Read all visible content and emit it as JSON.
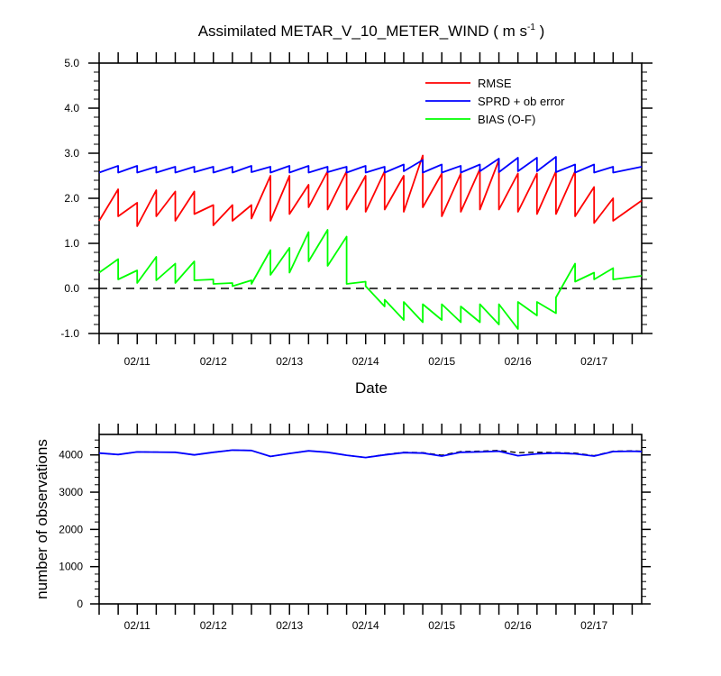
{
  "chart_data": [
    {
      "type": "line",
      "title": "Assimilated METAR_V_10_METER_WIND ( m s",
      "title_sup": "-1",
      "title_end": " )",
      "xlabel": "Date",
      "ylabel": "",
      "x_ticks": [
        "02/11",
        "02/12",
        "02/13",
        "02/14",
        "02/15",
        "02/16",
        "02/17"
      ],
      "y_ticks": [
        "5.0",
        "4.0",
        "3.0",
        "2.0",
        "1.0",
        "0.0",
        "-1.0"
      ],
      "ylim": [
        -1.0,
        5.0
      ],
      "xlim": [
        0,
        28.5
      ],
      "reference_line": {
        "y": 0.0,
        "style": "dashed",
        "color": "#000000"
      },
      "legend_position": "top-right",
      "series": [
        {
          "name": "RMSE",
          "color": "#ff0000",
          "points": [
            [
              0,
              1.5
            ],
            [
              1,
              2.2
            ],
            [
              1,
              1.6
            ],
            [
              2,
              1.9
            ],
            [
              2,
              1.38
            ],
            [
              3,
              2.18
            ],
            [
              3,
              1.6
            ],
            [
              4,
              2.15
            ],
            [
              4,
              1.5
            ],
            [
              5,
              2.15
            ],
            [
              5,
              1.65
            ],
            [
              6,
              1.85
            ],
            [
              6,
              1.4
            ],
            [
              7,
              1.85
            ],
            [
              7,
              1.5
            ],
            [
              8,
              1.85
            ],
            [
              8,
              1.55
            ],
            [
              9,
              2.5
            ],
            [
              9,
              1.5
            ],
            [
              10,
              2.5
            ],
            [
              10,
              1.65
            ],
            [
              11,
              2.3
            ],
            [
              11,
              1.8
            ],
            [
              12,
              2.6
            ],
            [
              12,
              1.75
            ],
            [
              13,
              2.6
            ],
            [
              13,
              1.75
            ],
            [
              14,
              2.5
            ],
            [
              14,
              1.7
            ],
            [
              15,
              2.6
            ],
            [
              15,
              1.75
            ],
            [
              16,
              2.5
            ],
            [
              16,
              1.7
            ],
            [
              17,
              2.95
            ],
            [
              17,
              1.8
            ],
            [
              18,
              2.55
            ],
            [
              18,
              1.6
            ],
            [
              19,
              2.55
            ],
            [
              19,
              1.7
            ],
            [
              20,
              2.65
            ],
            [
              20,
              1.75
            ],
            [
              21,
              2.85
            ],
            [
              21,
              1.75
            ],
            [
              22,
              2.55
            ],
            [
              22,
              1.7
            ],
            [
              23,
              2.55
            ],
            [
              23,
              1.65
            ],
            [
              24,
              2.6
            ],
            [
              24,
              1.65
            ],
            [
              25,
              2.6
            ],
            [
              25,
              1.6
            ],
            [
              26,
              2.25
            ],
            [
              26,
              1.45
            ],
            [
              27,
              2.0
            ],
            [
              27,
              1.5
            ],
            [
              28.5,
              1.95
            ]
          ]
        },
        {
          "name": "SPRD + ob error",
          "color": "#0000ff",
          "points": [
            [
              0,
              2.57
            ],
            [
              1,
              2.72
            ],
            [
              1,
              2.57
            ],
            [
              2,
              2.72
            ],
            [
              2,
              2.57
            ],
            [
              3,
              2.7
            ],
            [
              3,
              2.57
            ],
            [
              4,
              2.7
            ],
            [
              4,
              2.57
            ],
            [
              5,
              2.7
            ],
            [
              5,
              2.58
            ],
            [
              6,
              2.7
            ],
            [
              6,
              2.57
            ],
            [
              7,
              2.7
            ],
            [
              7,
              2.57
            ],
            [
              8,
              2.72
            ],
            [
              8,
              2.58
            ],
            [
              9,
              2.7
            ],
            [
              9,
              2.57
            ],
            [
              10,
              2.72
            ],
            [
              10,
              2.57
            ],
            [
              11,
              2.72
            ],
            [
              11,
              2.57
            ],
            [
              12,
              2.7
            ],
            [
              12,
              2.58
            ],
            [
              13,
              2.7
            ],
            [
              13,
              2.57
            ],
            [
              14,
              2.72
            ],
            [
              14,
              2.57
            ],
            [
              15,
              2.7
            ],
            [
              15,
              2.57
            ],
            [
              16,
              2.75
            ],
            [
              16,
              2.6
            ],
            [
              17,
              2.85
            ],
            [
              17,
              2.57
            ],
            [
              18,
              2.75
            ],
            [
              18,
              2.57
            ],
            [
              19,
              2.72
            ],
            [
              19,
              2.57
            ],
            [
              20,
              2.75
            ],
            [
              20,
              2.6
            ],
            [
              21,
              2.88
            ],
            [
              21,
              2.58
            ],
            [
              22,
              2.9
            ],
            [
              22,
              2.6
            ],
            [
              23,
              2.9
            ],
            [
              23,
              2.6
            ],
            [
              24,
              2.92
            ],
            [
              24,
              2.58
            ],
            [
              25,
              2.75
            ],
            [
              25,
              2.57
            ],
            [
              26,
              2.75
            ],
            [
              26,
              2.57
            ],
            [
              27,
              2.7
            ],
            [
              27,
              2.57
            ],
            [
              28.5,
              2.7
            ]
          ]
        },
        {
          "name": "BIAS (O-F)",
          "color": "#00ff00",
          "points": [
            [
              0,
              0.35
            ],
            [
              1,
              0.65
            ],
            [
              1,
              0.2
            ],
            [
              2,
              0.4
            ],
            [
              2,
              0.12
            ],
            [
              3,
              0.7
            ],
            [
              3,
              0.18
            ],
            [
              4,
              0.55
            ],
            [
              4,
              0.12
            ],
            [
              5,
              0.6
            ],
            [
              5,
              0.18
            ],
            [
              6,
              0.2
            ],
            [
              6,
              0.1
            ],
            [
              7,
              0.12
            ],
            [
              7,
              0.05
            ],
            [
              8,
              0.18
            ],
            [
              8,
              0.1
            ],
            [
              9,
              0.85
            ],
            [
              9,
              0.3
            ],
            [
              10,
              0.9
            ],
            [
              10,
              0.35
            ],
            [
              11,
              1.25
            ],
            [
              11,
              0.6
            ],
            [
              12,
              1.3
            ],
            [
              12,
              0.5
            ],
            [
              13,
              1.15
            ],
            [
              13,
              0.1
            ],
            [
              14,
              0.15
            ],
            [
              14,
              0.05
            ],
            [
              15,
              -0.4
            ],
            [
              15,
              -0.25
            ],
            [
              16,
              -0.7
            ],
            [
              16,
              -0.3
            ],
            [
              17,
              -0.75
            ],
            [
              17,
              -0.35
            ],
            [
              18,
              -0.7
            ],
            [
              18,
              -0.35
            ],
            [
              19,
              -0.75
            ],
            [
              19,
              -0.4
            ],
            [
              20,
              -0.75
            ],
            [
              20,
              -0.35
            ],
            [
              21,
              -0.8
            ],
            [
              21,
              -0.35
            ],
            [
              22,
              -0.9
            ],
            [
              22,
              -0.3
            ],
            [
              23,
              -0.6
            ],
            [
              23,
              -0.3
            ],
            [
              24,
              -0.55
            ],
            [
              24,
              -0.2
            ],
            [
              25,
              0.55
            ],
            [
              25,
              0.15
            ],
            [
              26,
              0.35
            ],
            [
              26,
              0.2
            ],
            [
              27,
              0.45
            ],
            [
              27,
              0.2
            ],
            [
              28.5,
              0.28
            ]
          ]
        }
      ]
    },
    {
      "type": "line",
      "title": "",
      "xlabel": "",
      "ylabel": "number of observations",
      "x_ticks": [
        "02/11",
        "02/12",
        "02/13",
        "02/14",
        "02/15",
        "02/16",
        "02/17"
      ],
      "y_ticks": [
        "4000",
        "3000",
        "2000",
        "1000",
        "0"
      ],
      "ylim": [
        0,
        4550
      ],
      "xlim": [
        0,
        28.5
      ],
      "series": [
        {
          "color": "#000000",
          "style": "dashed",
          "points": [
            [
              0,
              4050
            ],
            [
              1,
              4010
            ],
            [
              2,
              4080
            ],
            [
              3,
              4075
            ],
            [
              4,
              4070
            ],
            [
              5,
              4000
            ],
            [
              6,
              4070
            ],
            [
              7,
              4130
            ],
            [
              8,
              4120
            ],
            [
              9,
              3960
            ],
            [
              10,
              4040
            ],
            [
              11,
              4110
            ],
            [
              12,
              4070
            ],
            [
              13,
              3990
            ],
            [
              14,
              3930
            ],
            [
              15,
              4010
            ],
            [
              16,
              4070
            ],
            [
              17,
              4060
            ],
            [
              18,
              3990
            ],
            [
              19,
              4090
            ],
            [
              20,
              4100
            ],
            [
              21,
              4120
            ],
            [
              22,
              4060
            ],
            [
              23,
              4070
            ],
            [
              24,
              4060
            ],
            [
              25,
              4050
            ],
            [
              26,
              3980
            ],
            [
              27,
              4100
            ],
            [
              28,
              4110
            ],
            [
              28.5,
              4100
            ]
          ]
        },
        {
          "color": "#0000ff",
          "style": "solid",
          "points": [
            [
              0,
              4050
            ],
            [
              1,
              4010
            ],
            [
              2,
              4080
            ],
            [
              3,
              4075
            ],
            [
              4,
              4070
            ],
            [
              5,
              4000
            ],
            [
              6,
              4070
            ],
            [
              7,
              4130
            ],
            [
              8,
              4120
            ],
            [
              9,
              3960
            ],
            [
              10,
              4040
            ],
            [
              11,
              4110
            ],
            [
              12,
              4070
            ],
            [
              13,
              3990
            ],
            [
              14,
              3930
            ],
            [
              15,
              4000
            ],
            [
              16,
              4060
            ],
            [
              17,
              4050
            ],
            [
              18,
              3970
            ],
            [
              19,
              4070
            ],
            [
              20,
              4080
            ],
            [
              21,
              4100
            ],
            [
              22,
              3980
            ],
            [
              23,
              4030
            ],
            [
              24,
              4050
            ],
            [
              25,
              4030
            ],
            [
              26,
              3970
            ],
            [
              27,
              4090
            ],
            [
              28,
              4100
            ],
            [
              28.5,
              4090
            ]
          ]
        }
      ]
    }
  ]
}
